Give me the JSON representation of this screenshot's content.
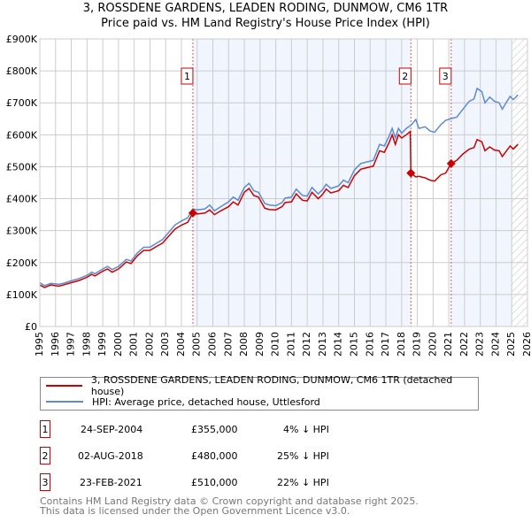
{
  "chart_data": {
    "type": "line",
    "title": "3, ROSSDENE GARDENS, LEADEN RODING, DUNMOW, CM6 1TR",
    "subtitle": "Price paid vs. HM Land Registry's House Price Index (HPI)",
    "xlim": [
      1995,
      2026
    ],
    "ylim": [
      0,
      900000
    ],
    "x_ticks": [
      "1995",
      "1996",
      "1997",
      "1998",
      "1999",
      "2000",
      "2001",
      "2002",
      "2003",
      "2004",
      "2005",
      "2006",
      "2007",
      "2008",
      "2009",
      "2010",
      "2011",
      "2012",
      "2013",
      "2014",
      "2015",
      "2016",
      "2017",
      "2018",
      "2019",
      "2020",
      "2021",
      "2022",
      "2023",
      "2024",
      "2025",
      "2026"
    ],
    "y_ticks": [
      {
        "v": 0,
        "label": "£0"
      },
      {
        "v": 100000,
        "label": "£100K"
      },
      {
        "v": 200000,
        "label": "£200K"
      },
      {
        "v": 300000,
        "label": "£300K"
      },
      {
        "v": 400000,
        "label": "£400K"
      },
      {
        "v": 500000,
        "label": "£500K"
      },
      {
        "v": 600000,
        "label": "£600K"
      },
      {
        "v": 700000,
        "label": "£700K"
      },
      {
        "v": 800000,
        "label": "£800K"
      },
      {
        "v": 900000,
        "label": "£900K"
      }
    ],
    "grid": true,
    "shaded_periods": [
      [
        2004.73,
        2018.59
      ],
      [
        2021.15,
        2025.0
      ]
    ],
    "forecast_hatch": [
      2025.0,
      2026
    ],
    "series": [
      {
        "name": "3, ROSSDENE GARDENS, LEADEN RODING, DUNMOW, CM6 1TR (detached house)",
        "color": "#cc0000",
        "points_k": [
          [
            1995.0,
            130
          ],
          [
            1995.3,
            122
          ],
          [
            1995.7,
            130
          ],
          [
            1996.2,
            126
          ],
          [
            1996.5,
            130
          ],
          [
            1997,
            137
          ],
          [
            1997.5,
            144
          ],
          [
            1998,
            154
          ],
          [
            1998.3,
            163
          ],
          [
            1998.5,
            158
          ],
          [
            1999,
            173
          ],
          [
            1999.3,
            180
          ],
          [
            1999.6,
            170
          ],
          [
            2000,
            180
          ],
          [
            2000.5,
            202
          ],
          [
            2000.8,
            197
          ],
          [
            2001.2,
            221
          ],
          [
            2001.6,
            238
          ],
          [
            2002,
            238
          ],
          [
            2002.4,
            250
          ],
          [
            2002.8,
            261
          ],
          [
            2003.2,
            283
          ],
          [
            2003.6,
            305
          ],
          [
            2004,
            317
          ],
          [
            2004.4,
            326
          ],
          [
            2004.73,
            355
          ],
          [
            2005,
            352
          ],
          [
            2005.5,
            355
          ],
          [
            2005.8,
            365
          ],
          [
            2006.1,
            350
          ],
          [
            2006.5,
            362
          ],
          [
            2007,
            375
          ],
          [
            2007.3,
            390
          ],
          [
            2007.6,
            380
          ],
          [
            2008,
            420
          ],
          [
            2008.3,
            432
          ],
          [
            2008.6,
            410
          ],
          [
            2008.9,
            405
          ],
          [
            2009.3,
            370
          ],
          [
            2009.6,
            366
          ],
          [
            2010,
            365
          ],
          [
            2010.4,
            375
          ],
          [
            2010.6,
            388
          ],
          [
            2011,
            390
          ],
          [
            2011.3,
            415
          ],
          [
            2011.7,
            395
          ],
          [
            2012,
            393
          ],
          [
            2012.3,
            420
          ],
          [
            2012.7,
            400
          ],
          [
            2013,
            415
          ],
          [
            2013.2,
            430
          ],
          [
            2013.5,
            418
          ],
          [
            2014,
            425
          ],
          [
            2014.3,
            442
          ],
          [
            2014.6,
            435
          ],
          [
            2015,
            472
          ],
          [
            2015.4,
            492
          ],
          [
            2015.8,
            497
          ],
          [
            2016.2,
            502
          ],
          [
            2016.6,
            550
          ],
          [
            2016.9,
            545
          ],
          [
            2017.2,
            575
          ],
          [
            2017.4,
            600
          ],
          [
            2017.6,
            570
          ],
          [
            2017.8,
            600
          ],
          [
            2018,
            590
          ],
          [
            2018.3,
            600
          ],
          [
            2018.55,
            610
          ],
          [
            2018.59,
            480
          ],
          [
            2018.9,
            468
          ],
          [
            2019.1,
            470
          ],
          [
            2019.5,
            465
          ],
          [
            2019.8,
            458
          ],
          [
            2020.1,
            455
          ],
          [
            2020.5,
            475
          ],
          [
            2020.8,
            480
          ],
          [
            2021.15,
            510
          ],
          [
            2021.5,
            520
          ],
          [
            2021.9,
            540
          ],
          [
            2022.3,
            555
          ],
          [
            2022.6,
            560
          ],
          [
            2022.8,
            585
          ],
          [
            2023.1,
            578
          ],
          [
            2023.3,
            550
          ],
          [
            2023.6,
            562
          ],
          [
            2023.9,
            552
          ],
          [
            2024.2,
            550
          ],
          [
            2024.4,
            532
          ],
          [
            2024.7,
            552
          ],
          [
            2024.9,
            565
          ],
          [
            2025.1,
            555
          ],
          [
            2025.4,
            570
          ]
        ]
      },
      {
        "name": "HPI: Average price, detached house, Uttlesford",
        "color": "#5b8bd0",
        "points_k": [
          [
            1995.0,
            137
          ],
          [
            1995.3,
            128
          ],
          [
            1995.7,
            135
          ],
          [
            1996.2,
            132
          ],
          [
            1996.5,
            135
          ],
          [
            1997,
            143
          ],
          [
            1997.5,
            150
          ],
          [
            1998,
            160
          ],
          [
            1998.3,
            170
          ],
          [
            1998.5,
            165
          ],
          [
            1999,
            180
          ],
          [
            1999.3,
            188
          ],
          [
            1999.6,
            178
          ],
          [
            2000,
            188
          ],
          [
            2000.5,
            210
          ],
          [
            2000.8,
            205
          ],
          [
            2001.2,
            230
          ],
          [
            2001.6,
            248
          ],
          [
            2002,
            248
          ],
          [
            2002.4,
            260
          ],
          [
            2002.8,
            272
          ],
          [
            2003.2,
            295
          ],
          [
            2003.6,
            318
          ],
          [
            2004,
            330
          ],
          [
            2004.4,
            340
          ],
          [
            2004.73,
            368
          ],
          [
            2005,
            365
          ],
          [
            2005.5,
            368
          ],
          [
            2005.8,
            380
          ],
          [
            2006.1,
            362
          ],
          [
            2006.5,
            375
          ],
          [
            2007,
            390
          ],
          [
            2007.3,
            405
          ],
          [
            2007.6,
            395
          ],
          [
            2008,
            435
          ],
          [
            2008.3,
            448
          ],
          [
            2008.6,
            425
          ],
          [
            2008.9,
            420
          ],
          [
            2009.3,
            385
          ],
          [
            2009.6,
            380
          ],
          [
            2010,
            378
          ],
          [
            2010.4,
            388
          ],
          [
            2010.6,
            402
          ],
          [
            2011,
            405
          ],
          [
            2011.3,
            430
          ],
          [
            2011.7,
            410
          ],
          [
            2012,
            408
          ],
          [
            2012.3,
            435
          ],
          [
            2012.7,
            415
          ],
          [
            2013,
            430
          ],
          [
            2013.2,
            445
          ],
          [
            2013.5,
            432
          ],
          [
            2014,
            440
          ],
          [
            2014.3,
            458
          ],
          [
            2014.6,
            450
          ],
          [
            2015,
            490
          ],
          [
            2015.4,
            510
          ],
          [
            2015.8,
            515
          ],
          [
            2016.2,
            520
          ],
          [
            2016.6,
            570
          ],
          [
            2016.9,
            565
          ],
          [
            2017.2,
            595
          ],
          [
            2017.4,
            620
          ],
          [
            2017.6,
            590
          ],
          [
            2017.8,
            620
          ],
          [
            2018,
            605
          ],
          [
            2018.3,
            620
          ],
          [
            2018.6,
            630
          ],
          [
            2018.9,
            648
          ],
          [
            2019.1,
            620
          ],
          [
            2019.5,
            625
          ],
          [
            2019.8,
            612
          ],
          [
            2020.1,
            608
          ],
          [
            2020.5,
            632
          ],
          [
            2020.8,
            645
          ],
          [
            2021.1,
            650
          ],
          [
            2021.5,
            655
          ],
          [
            2021.9,
            680
          ],
          [
            2022.3,
            705
          ],
          [
            2022.6,
            712
          ],
          [
            2022.8,
            745
          ],
          [
            2023.1,
            735
          ],
          [
            2023.3,
            700
          ],
          [
            2023.6,
            718
          ],
          [
            2023.9,
            705
          ],
          [
            2024.2,
            700
          ],
          [
            2024.4,
            680
          ],
          [
            2024.7,
            705
          ],
          [
            2024.9,
            720
          ],
          [
            2025.1,
            710
          ],
          [
            2025.4,
            725
          ]
        ]
      }
    ],
    "sales": [
      {
        "n": "1",
        "x": 2004.73,
        "price_k": 355,
        "date": "24-SEP-2004",
        "price": "£355,000",
        "hpi": "4% ↓ HPI"
      },
      {
        "n": "2",
        "x": 2018.59,
        "price_k": 480,
        "date": "02-AUG-2018",
        "price": "£480,000",
        "hpi": "25% ↓ HPI"
      },
      {
        "n": "3",
        "x": 2021.15,
        "price_k": 510,
        "date": "23-FEB-2021",
        "price": "£510,000",
        "hpi": "22% ↓ HPI"
      }
    ],
    "legend_placement": "below"
  },
  "footer": [
    "Contains HM Land Registry data © Crown copyright and database right 2025.",
    "This data is licensed under the Open Government Licence v3.0."
  ]
}
